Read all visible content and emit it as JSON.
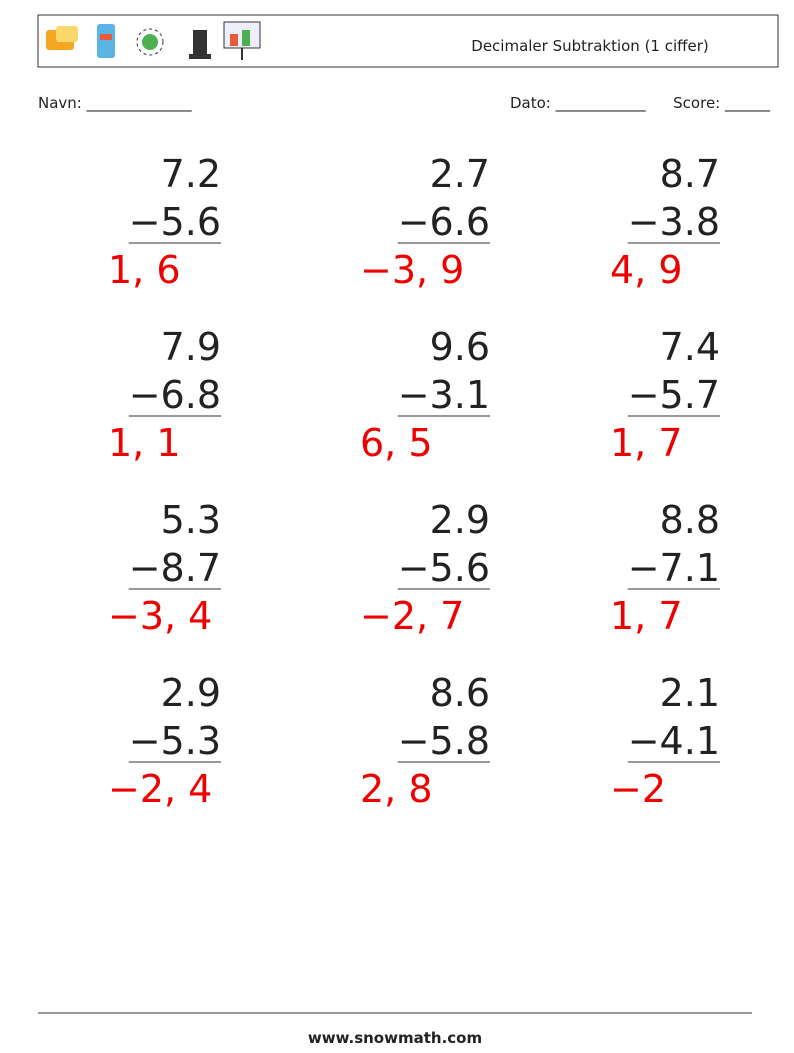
{
  "header": {
    "title": "Decimaler Subtraktion (1 ciffer)"
  },
  "fields": {
    "name": "Navn: ______________",
    "date": "Dato: ____________",
    "score": "Score: ______"
  },
  "problems": [
    {
      "top": "7.2",
      "bottom": "−5.6",
      "answer": "1, 6"
    },
    {
      "top": "2.7",
      "bottom": "−6.6",
      "answer": "−3, 9"
    },
    {
      "top": "8.7",
      "bottom": "−3.8",
      "answer": "4, 9"
    },
    {
      "top": "7.9",
      "bottom": "−6.8",
      "answer": "1, 1"
    },
    {
      "top": "9.6",
      "bottom": "−3.1",
      "answer": "6, 5"
    },
    {
      "top": "7.4",
      "bottom": "−5.7",
      "answer": "1, 7"
    },
    {
      "top": "5.3",
      "bottom": "−8.7",
      "answer": "−3, 4"
    },
    {
      "top": "2.9",
      "bottom": "−5.6",
      "answer": "−2, 7"
    },
    {
      "top": "8.8",
      "bottom": "−7.1",
      "answer": "1, 7"
    },
    {
      "top": "2.9",
      "bottom": "−5.3",
      "answer": "−2, 4"
    },
    {
      "top": "8.6",
      "bottom": "−5.8",
      "answer": "2, 8"
    },
    {
      "top": "2.1",
      "bottom": "−4.1",
      "answer": "−2"
    }
  ],
  "footer": {
    "url": "www.snowmath.com"
  }
}
